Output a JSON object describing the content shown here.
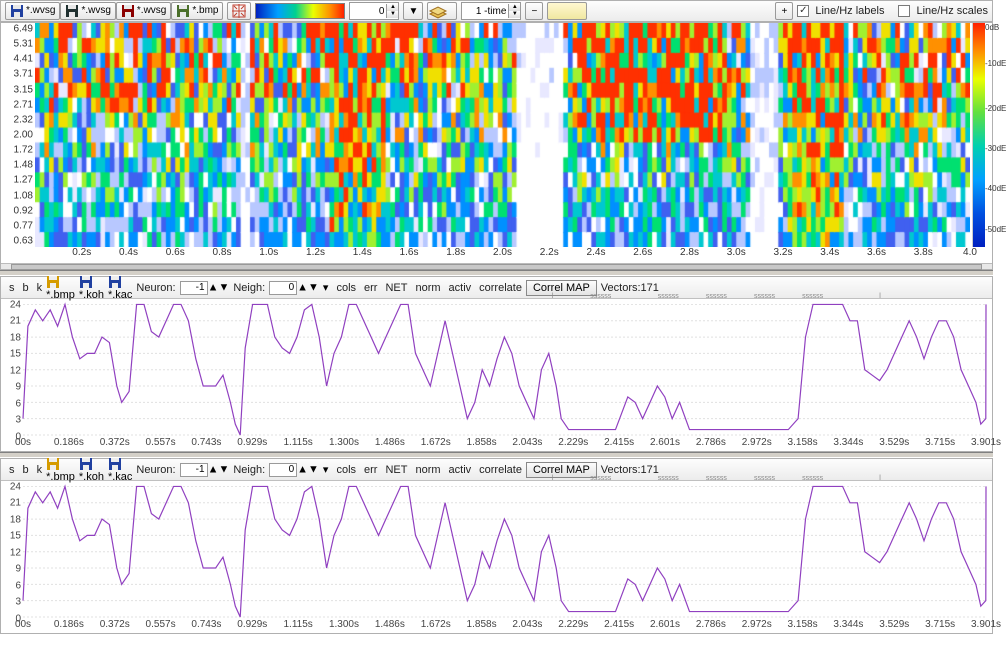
{
  "top_toolbar": {
    "files": [
      {
        "ext": "*.wvsg",
        "color": "#2040a0"
      },
      {
        "ext": "*.wvsg",
        "color": "#203030"
      },
      {
        "ext": "*.wvsg",
        "color": "#8b0000"
      },
      {
        "ext": "*.bmp",
        "color": "#4b6f2a"
      }
    ],
    "intensity_value": "0",
    "time_value": "1 -time",
    "linehz_labels_checked": true,
    "linehz_labels_text": "Line/Hz labels",
    "linehz_scales_checked": false,
    "linehz_scales_text": "Line/Hz scales"
  },
  "spectrogram": {
    "y_ticks": [
      6.49,
      5.31,
      4.41,
      3.71,
      3.15,
      2.71,
      2.32,
      2.0,
      1.72,
      1.48,
      1.27,
      1.08,
      0.92,
      0.77,
      0.63
    ],
    "x_ticks": [
      "0.2s",
      "0.4s",
      "0.6s",
      "0.8s",
      "1.0s",
      "1.2s",
      "1.4s",
      "1.6s",
      "1.8s",
      "2.0s",
      "2.2s",
      "2.4s",
      "2.6s",
      "2.8s",
      "3.0s",
      "3.2s",
      "3.4s",
      "3.6s",
      "3.8s",
      "4.0"
    ],
    "x_start": 0.0,
    "x_end": 4.0,
    "colorbar_labels": [
      {
        "t": "0dB",
        "y": 0
      },
      {
        "t": "-10dE",
        "y": 0.16
      },
      {
        "t": "-20dE",
        "y": 0.36
      },
      {
        "t": "-30dE",
        "y": 0.54
      },
      {
        "t": "-40dE",
        "y": 0.72
      },
      {
        "t": "-50dE",
        "y": 0.9
      }
    ],
    "palette": [
      "#ffffff",
      "#e8e8ff",
      "#b8c8ff",
      "#4060f0",
      "#0090ff",
      "#00c8d0",
      "#00e070",
      "#a0f030",
      "#f0e000",
      "#ff9000",
      "#ff3000"
    ],
    "seed": 731
  },
  "neuron_panel": {
    "radio_s": false,
    "radio_b": true,
    "radio_k": false,
    "file_buttons": [
      {
        "ext": "*.bmp",
        "col": "#d59b00"
      },
      {
        "ext": "*.koh",
        "col": "#2040a0"
      },
      {
        "ext": "*.kac",
        "col": "#2040a0"
      }
    ],
    "neuron_label": "Neuron:",
    "neuron_value": "-1",
    "neigh_label": "Neigh:",
    "neigh_value": "0",
    "checks": [
      {
        "k": "cols",
        "on": false
      },
      {
        "k": "err",
        "on": false
      },
      {
        "k": "NET",
        "on": false
      },
      {
        "k": "norm",
        "on": false
      },
      {
        "k": "activ",
        "on": false
      },
      {
        "k": "correlate",
        "on": false
      }
    ],
    "correl_btn": "Correl MAP",
    "vectors_label": "Vectors:171",
    "ticks_label": "ssssss",
    "y_ticks": [
      24,
      21,
      18,
      15,
      12,
      9,
      6,
      3,
      0
    ],
    "y_min": 0,
    "y_max": 25,
    "x_ticks": [
      "00s",
      "0.186s",
      "0.372s",
      "0.557s",
      "0.743s",
      "0.929s",
      "1.115s",
      "1.300s",
      "1.486s",
      "1.672s",
      "1.858s",
      "2.043s",
      "2.229s",
      "2.415s",
      "2.601s",
      "2.786s",
      "2.972s",
      "3.158s",
      "3.344s",
      "3.529s",
      "3.715s",
      "3.901s"
    ],
    "x_start": 0,
    "x_end": 3.901,
    "series": [
      [
        0.0,
        3
      ],
      [
        0.02,
        20
      ],
      [
        0.05,
        23
      ],
      [
        0.08,
        21
      ],
      [
        0.11,
        23
      ],
      [
        0.14,
        20
      ],
      [
        0.17,
        24
      ],
      [
        0.2,
        18
      ],
      [
        0.23,
        14
      ],
      [
        0.26,
        15
      ],
      [
        0.29,
        15
      ],
      [
        0.32,
        18
      ],
      [
        0.35,
        17
      ],
      [
        0.38,
        9
      ],
      [
        0.4,
        6
      ],
      [
        0.43,
        8
      ],
      [
        0.46,
        24
      ],
      [
        0.49,
        24
      ],
      [
        0.52,
        19
      ],
      [
        0.55,
        18
      ],
      [
        0.58,
        21
      ],
      [
        0.61,
        24
      ],
      [
        0.64,
        24
      ],
      [
        0.67,
        21
      ],
      [
        0.7,
        14
      ],
      [
        0.73,
        9
      ],
      [
        0.75,
        9
      ],
      [
        0.78,
        9
      ],
      [
        0.81,
        11
      ],
      [
        0.84,
        6
      ],
      [
        0.86,
        2
      ],
      [
        0.88,
        0
      ],
      [
        0.9,
        16
      ],
      [
        0.93,
        24
      ],
      [
        0.96,
        24
      ],
      [
        0.99,
        24
      ],
      [
        1.02,
        18
      ],
      [
        1.05,
        16
      ],
      [
        1.08,
        15
      ],
      [
        1.11,
        18
      ],
      [
        1.14,
        23
      ],
      [
        1.17,
        24
      ],
      [
        1.2,
        18
      ],
      [
        1.23,
        9
      ],
      [
        1.26,
        15
      ],
      [
        1.29,
        18
      ],
      [
        1.32,
        24
      ],
      [
        1.35,
        24
      ],
      [
        1.38,
        21
      ],
      [
        1.41,
        18
      ],
      [
        1.44,
        15
      ],
      [
        1.47,
        18
      ],
      [
        1.5,
        21
      ],
      [
        1.53,
        24
      ],
      [
        1.56,
        24
      ],
      [
        1.59,
        15
      ],
      [
        1.62,
        12
      ],
      [
        1.65,
        9
      ],
      [
        1.68,
        15
      ],
      [
        1.71,
        21
      ],
      [
        1.74,
        15
      ],
      [
        1.77,
        9
      ],
      [
        1.8,
        3
      ],
      [
        1.83,
        6
      ],
      [
        1.86,
        12
      ],
      [
        1.89,
        9
      ],
      [
        1.92,
        14
      ],
      [
        1.95,
        18
      ],
      [
        1.98,
        15
      ],
      [
        2.01,
        9
      ],
      [
        2.04,
        6
      ],
      [
        2.07,
        3
      ],
      [
        2.1,
        12
      ],
      [
        2.13,
        15
      ],
      [
        2.16,
        9
      ],
      [
        2.18,
        3
      ],
      [
        2.21,
        1
      ],
      [
        2.26,
        1
      ],
      [
        2.3,
        1
      ],
      [
        2.35,
        1
      ],
      [
        2.4,
        1
      ],
      [
        2.45,
        7
      ],
      [
        2.48,
        6
      ],
      [
        2.51,
        3
      ],
      [
        2.54,
        6
      ],
      [
        2.57,
        9
      ],
      [
        2.6,
        7
      ],
      [
        2.63,
        3
      ],
      [
        2.66,
        6
      ],
      [
        2.7,
        1
      ],
      [
        2.75,
        1
      ],
      [
        2.8,
        1
      ],
      [
        2.85,
        1
      ],
      [
        2.9,
        1
      ],
      [
        2.95,
        1
      ],
      [
        3.0,
        1
      ],
      [
        3.05,
        1
      ],
      [
        3.1,
        1
      ],
      [
        3.14,
        3
      ],
      [
        3.17,
        18
      ],
      [
        3.2,
        24
      ],
      [
        3.23,
        24
      ],
      [
        3.26,
        24
      ],
      [
        3.29,
        24
      ],
      [
        3.32,
        24
      ],
      [
        3.35,
        21
      ],
      [
        3.38,
        21
      ],
      [
        3.41,
        12
      ],
      [
        3.44,
        11
      ],
      [
        3.47,
        10
      ],
      [
        3.5,
        12
      ],
      [
        3.53,
        15
      ],
      [
        3.56,
        18
      ],
      [
        3.59,
        21
      ],
      [
        3.62,
        18
      ],
      [
        3.65,
        14
      ],
      [
        3.68,
        18
      ],
      [
        3.71,
        21
      ],
      [
        3.74,
        21
      ],
      [
        3.77,
        18
      ],
      [
        3.8,
        12
      ],
      [
        3.83,
        9
      ],
      [
        3.86,
        6
      ],
      [
        3.88,
        2
      ],
      [
        3.9,
        3
      ],
      [
        3.901,
        24
      ]
    ],
    "line_color": "#9040c0",
    "grid_color": "#e0e0e0"
  }
}
